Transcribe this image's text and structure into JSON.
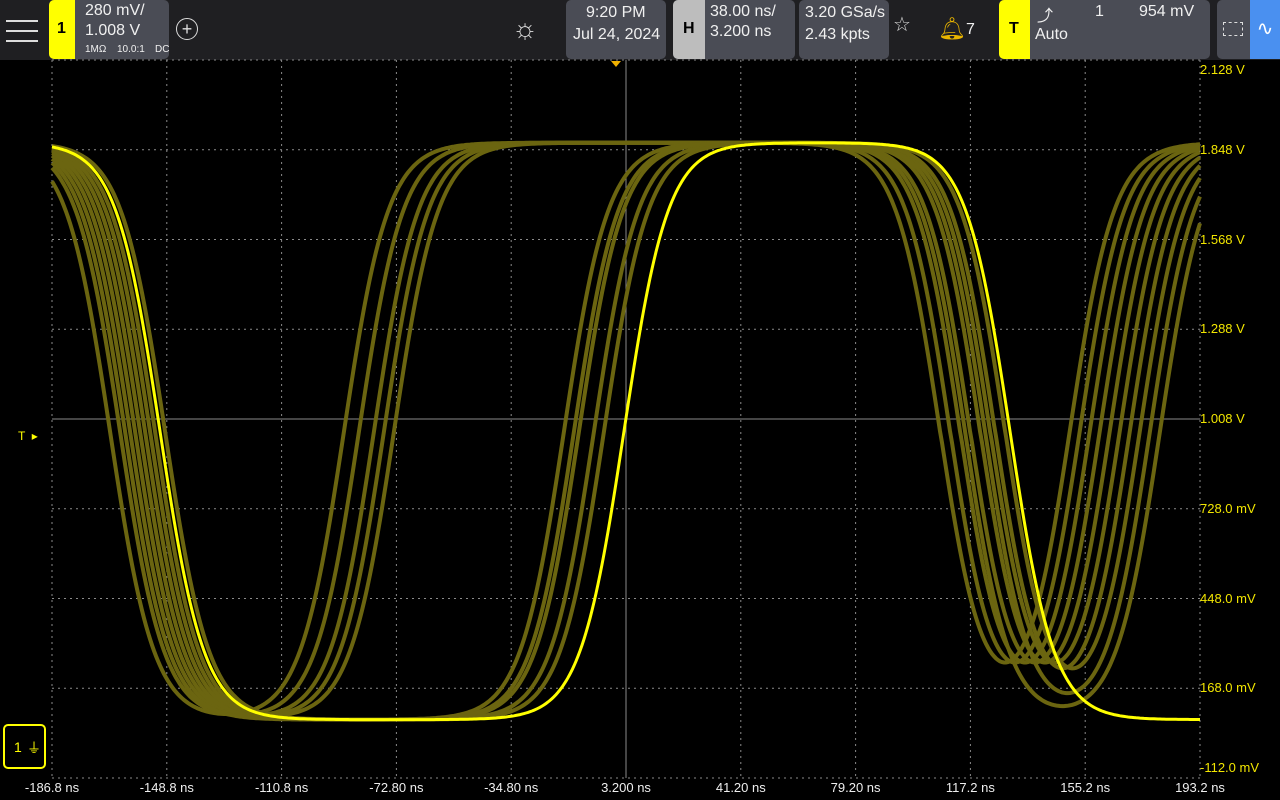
{
  "channel1": {
    "number": "1",
    "scale": "280 mV/",
    "offset": "1.008 V",
    "impedance": "1MΩ",
    "probe": "10.0:1",
    "coupling": "DC",
    "color": "#ffff00"
  },
  "clock": {
    "time": "9:20 PM",
    "date": "Jul 24, 2024"
  },
  "horizontal": {
    "label": "H",
    "scale": "38.00 ns/",
    "position": "3.200 ns"
  },
  "acquisition": {
    "sample_rate": "3.20 GSa/s",
    "points": "2.43 kpts"
  },
  "notifications": {
    "count": "7"
  },
  "trigger": {
    "label": "T",
    "source": "1",
    "level": "954 mV",
    "mode": "Auto",
    "slope_icon": "rising-edge-icon"
  },
  "marker_trigger_level": "T",
  "ground_marker": "1",
  "y_axis_labels": [
    "2.128 V",
    "1.848 V",
    "1.568 V",
    "1.288 V",
    "1.008 V",
    "728.0 mV",
    "448.0 mV",
    "168.0 mV",
    "-112.0 mV"
  ],
  "x_axis_labels": [
    "-186.8 ns",
    "-148.8 ns",
    "-110.8 ns",
    "-72.80 ns",
    "-34.80 ns",
    "3.200 ns",
    "41.20 ns",
    "79.20 ns",
    "117.2 ns",
    "155.2 ns",
    "193.2 ns"
  ],
  "colors": {
    "trace": "#ffff00",
    "persistence": "#6b6510",
    "accent_blue": "#4a90f0",
    "header_bg": "#1f1f22"
  }
}
